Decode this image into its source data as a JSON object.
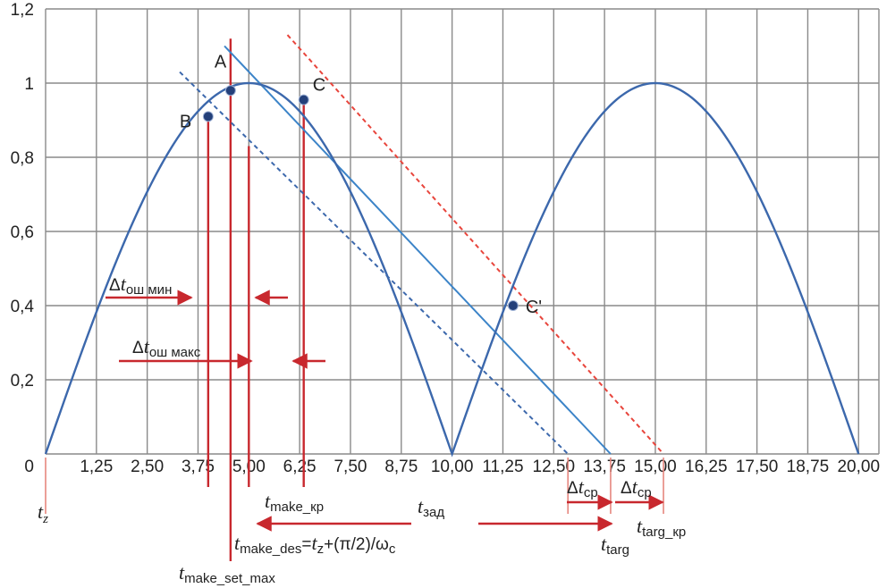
{
  "chart_data": {
    "type": "line",
    "xlim": [
      0,
      20.5
    ],
    "ylim": [
      0,
      1.2
    ],
    "x_ticks": [
      1.25,
      2.5,
      3.75,
      5,
      6.25,
      7.5,
      8.75,
      10,
      11.25,
      12.5,
      13.75,
      15,
      16.25,
      17.5,
      18.75,
      20
    ],
    "x_tick_labels": [
      "1,25",
      "2,50",
      "3,75",
      "5,00",
      "6,25",
      "7,50",
      "8,75",
      "10,00",
      "11,25",
      "12,50",
      "13,75",
      "15,00",
      "16,25",
      "17,50",
      "18,75",
      "20,00"
    ],
    "y_ticks": [
      0,
      0.2,
      0.4,
      0.6,
      0.8,
      1,
      1.2
    ],
    "y_tick_labels": [
      "0",
      "0,2",
      "0,4",
      "0,6",
      "0,8",
      "1",
      "1,2"
    ],
    "grid": true,
    "series": [
      {
        "style": "solid",
        "color": "#3c68ac",
        "x": [
          0,
          1.25,
          2.5,
          3.75,
          5,
          6.25,
          7.5,
          8.75,
          10,
          11.25,
          12.5,
          13.75,
          15,
          16.25,
          17.5,
          18.75,
          20
        ],
        "y": [
          0,
          0.383,
          0.707,
          0.924,
          1,
          0.924,
          0.707,
          0.383,
          0,
          0.383,
          0.707,
          0.924,
          1,
          0.924,
          0.707,
          0.383,
          0
        ]
      }
    ],
    "lines": [
      {
        "style": "dashed",
        "color": "#3c68ac",
        "x": [
          3.3,
          12.85
        ],
        "y": [
          1.03,
          0
        ]
      },
      {
        "style": "solid",
        "color": "#3c84c8",
        "x": [
          4.4,
          13.9
        ],
        "y": [
          1.1,
          0
        ]
      },
      {
        "style": "dashed",
        "color": "#e8453c",
        "x": [
          5.95,
          15.2
        ],
        "y": [
          1.13,
          0
        ]
      }
    ],
    "points": [
      {
        "label": "B",
        "x": 4.0,
        "y": 0.91
      },
      {
        "label": "A",
        "x": 4.55,
        "y": 0.98
      },
      {
        "label": "C",
        "x": 6.35,
        "y": 0.955
      },
      {
        "label": "C'",
        "x": 11.5,
        "y": 0.4
      }
    ],
    "vertical_markers": [
      {
        "x": 0,
        "y_top": 0
      },
      {
        "x": 4.0,
        "y_top": 0.91
      },
      {
        "x": 4.55,
        "y_top": 1.12
      },
      {
        "x": 5.0,
        "y_top": 0.83
      },
      {
        "x": 6.35,
        "y_top": 0.955
      },
      {
        "x": 12.85,
        "y_top": 0
      },
      {
        "x": 13.9,
        "y_top": 0
      },
      {
        "x": 15.2,
        "y_top": 0
      }
    ],
    "annotations": {
      "dt_err_min_main": "Δ",
      "dt_err_min_t": "t",
      "dt_err_min_sub": "ош мин",
      "dt_err_max_main": "Δ",
      "dt_err_max_t": "t",
      "dt_err_max_sub": "ош макс",
      "t_z_main": "t",
      "t_z_sub": "z",
      "t_make_kr_main": "t",
      "t_make_kr_sub": "make_кр",
      "t_zad_main": "t",
      "t_zad_sub": "зад",
      "t_make_des_main": "t",
      "t_make_des_sub": "make_des",
      "t_make_des_eq": "=",
      "t_make_des_tz": "t",
      "t_make_des_tz_sub": "z",
      "t_make_des_rest": "+(π/2)/ω",
      "t_make_des_omega_sub": "c",
      "t_make_set_max_main": "t",
      "t_make_set_max_sub": "make_set_max",
      "t_targ_main": "t",
      "t_targ_sub": "targ",
      "t_targ_kr_main": "t",
      "t_targ_kr_sub": "targ_кр",
      "dt_sr1_main": "Δ",
      "dt_sr1_t": "t",
      "dt_sr1_sub": "ср",
      "dt_sr2_main": "Δ",
      "dt_sr2_t": "t",
      "dt_sr2_sub": "ср"
    }
  }
}
